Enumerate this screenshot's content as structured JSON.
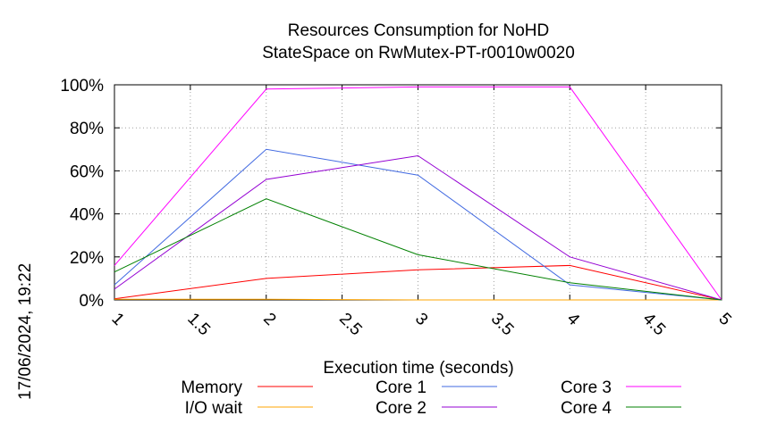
{
  "chart_data": {
    "type": "line",
    "title": [
      "Resources Consumption for NoHD",
      "StateSpace on RwMutex-PT-r0010w0020"
    ],
    "xlabel": "Execution time (seconds)",
    "ylabel": "",
    "xlim": [
      1,
      5
    ],
    "ylim": [
      0,
      100
    ],
    "x_ticks": [
      "1",
      "1.5",
      "2",
      "2.5",
      "3",
      "3.5",
      "4",
      "4.5",
      "5"
    ],
    "y_ticks": [
      "0%",
      "20%",
      "40%",
      "60%",
      "80%",
      "100%"
    ],
    "grid": true,
    "legend_position": "bottom",
    "timestamp": "17/06/2024, 19:22",
    "series": [
      {
        "name": "Memory",
        "color": "#ff0000",
        "x": [
          1,
          2,
          3,
          4,
          5
        ],
        "values": [
          0.5,
          10,
          14,
          16,
          0
        ]
      },
      {
        "name": "I/O wait",
        "color": "#ffa500",
        "x": [
          1,
          2,
          3,
          4,
          5
        ],
        "values": [
          0.3,
          0.3,
          0,
          0,
          0
        ]
      },
      {
        "name": "Core 1",
        "color": "#4169e1",
        "x": [
          1,
          2,
          3,
          4,
          5
        ],
        "values": [
          7,
          70,
          58,
          7,
          0
        ]
      },
      {
        "name": "Core 2",
        "color": "#9400d3",
        "x": [
          1,
          2,
          3,
          4,
          5
        ],
        "values": [
          5,
          56,
          67,
          20,
          0
        ]
      },
      {
        "name": "Core 3",
        "color": "#ff00ff",
        "x": [
          1,
          2,
          3,
          4,
          5
        ],
        "values": [
          16,
          98,
          99,
          99,
          0
        ]
      },
      {
        "name": "Core 4",
        "color": "#008000",
        "x": [
          1,
          2,
          3,
          4,
          5
        ],
        "values": [
          13,
          47,
          21,
          8,
          0
        ]
      }
    ]
  }
}
